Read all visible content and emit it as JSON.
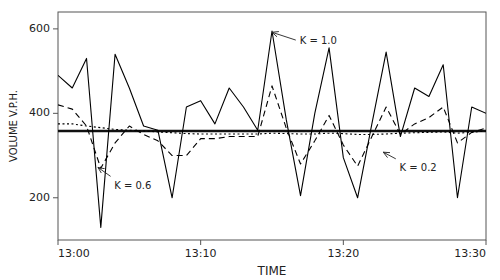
{
  "chart_data": {
    "type": "line",
    "xlabel": "TIME",
    "ylabel": "VOLUME V.P.H.",
    "x": [
      0,
      1,
      2,
      3,
      4,
      5,
      6,
      7,
      8,
      9,
      10,
      11,
      12,
      13,
      14,
      15,
      16,
      17,
      18,
      19,
      20,
      21,
      22,
      23,
      24,
      25,
      26,
      27,
      28,
      29,
      30
    ],
    "xlim": [
      0,
      30
    ],
    "xticks": [
      {
        "value": 0,
        "label": "13:00"
      },
      {
        "value": 10,
        "label": "13:10"
      },
      {
        "value": 20,
        "label": "13:20"
      },
      {
        "value": 30,
        "label": "13:30"
      }
    ],
    "ylim": [
      100,
      640
    ],
    "yticks": [
      200,
      400,
      600
    ],
    "grid": false,
    "mean_line": 358,
    "series": [
      {
        "color": "black",
        "line_style": "solid",
        "values": [
          490,
          460,
          530,
          130,
          540,
          460,
          370,
          360,
          200,
          415,
          430,
          375,
          460,
          415,
          360,
          595,
          385,
          205,
          400,
          555,
          295,
          200,
          375,
          545,
          345,
          460,
          440,
          515,
          200,
          415,
          400
        ]
      },
      {
        "color": "black",
        "line_style": "dashed",
        "values": [
          420,
          410,
          370,
          270,
          330,
          370,
          350,
          335,
          300,
          300,
          340,
          340,
          345,
          345,
          345,
          465,
          365,
          280,
          335,
          395,
          325,
          275,
          345,
          415,
          350,
          375,
          390,
          415,
          330,
          355,
          365
        ]
      },
      {
        "color": "black",
        "line_style": "dotted",
        "values": [
          375,
          375,
          370,
          366,
          362,
          360,
          358,
          356,
          354,
          352,
          351,
          351,
          351,
          351,
          351,
          353,
          352,
          351,
          351,
          353,
          352,
          350,
          350,
          351,
          353,
          354,
          355,
          356,
          353,
          355,
          358
        ]
      }
    ],
    "annotations": [
      {
        "text": "K = 1.0",
        "x": 15.0,
        "y": 592,
        "text_x": 16.8,
        "text_y": 572
      },
      {
        "text": "K = 0.6",
        "x": 2.8,
        "y": 272,
        "text_x": 3.8,
        "text_y": 248
      },
      {
        "text": "K = 0.2",
        "x": 22.8,
        "y": 308,
        "text_x": 23.8,
        "text_y": 290
      }
    ]
  }
}
